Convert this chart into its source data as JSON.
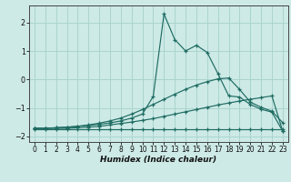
{
  "xlabel": "Humidex (Indice chaleur)",
  "background_color": "#cdeae6",
  "grid_color": "#aad4cf",
  "line_color": "#1e6b62",
  "x_values": [
    0,
    1,
    2,
    3,
    4,
    5,
    6,
    7,
    8,
    9,
    10,
    11,
    12,
    13,
    14,
    15,
    16,
    17,
    18,
    19,
    20,
    21,
    22,
    23
  ],
  "series": {
    "line1": [
      -1.75,
      -1.75,
      -1.75,
      -1.75,
      -1.75,
      -1.75,
      -1.75,
      -1.75,
      -1.75,
      -1.75,
      -1.75,
      -1.75,
      -1.75,
      -1.75,
      -1.75,
      -1.75,
      -1.75,
      -1.75,
      -1.75,
      -1.75,
      -1.75,
      -1.75,
      -1.75,
      -1.75
    ],
    "line2": [
      -1.72,
      -1.72,
      -1.72,
      -1.72,
      -1.7,
      -1.68,
      -1.65,
      -1.6,
      -1.55,
      -1.5,
      -1.44,
      -1.38,
      -1.3,
      -1.22,
      -1.14,
      -1.06,
      -0.98,
      -0.9,
      -0.83,
      -0.76,
      -0.7,
      -0.64,
      -0.58,
      -1.82
    ],
    "line3": [
      -1.72,
      -1.72,
      -1.7,
      -1.68,
      -1.65,
      -1.6,
      -1.54,
      -1.46,
      -1.36,
      -1.22,
      -1.06,
      -0.88,
      -0.7,
      -0.52,
      -0.35,
      -0.2,
      -0.08,
      0.02,
      0.05,
      -0.35,
      -0.8,
      -0.98,
      -1.12,
      -1.52
    ],
    "line4": [
      -1.72,
      -1.72,
      -1.7,
      -1.68,
      -1.65,
      -1.62,
      -1.58,
      -1.53,
      -1.46,
      -1.36,
      -1.22,
      -0.6,
      2.3,
      1.4,
      1.0,
      1.2,
      0.95,
      0.2,
      -0.58,
      -0.62,
      -0.88,
      -1.05,
      -1.15,
      -1.82
    ]
  },
  "ylim": [
    -2.2,
    2.6
  ],
  "xlim": [
    -0.5,
    23.5
  ],
  "yticks": [
    -2,
    -1,
    0,
    1,
    2
  ],
  "xticks": [
    0,
    1,
    2,
    3,
    4,
    5,
    6,
    7,
    8,
    9,
    10,
    11,
    12,
    13,
    14,
    15,
    16,
    17,
    18,
    19,
    20,
    21,
    22,
    23
  ]
}
